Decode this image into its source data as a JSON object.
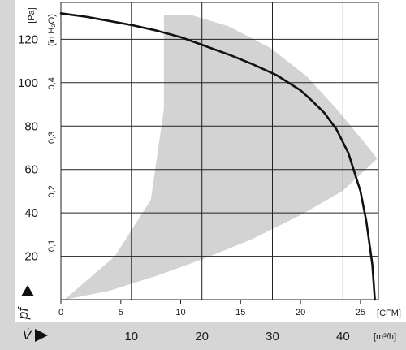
{
  "chart_data": {
    "type": "line",
    "title": "",
    "y_axis": {
      "unit": "[Pa]",
      "ticks": [
        20,
        40,
        60,
        80,
        100,
        120
      ],
      "range": [
        0,
        137
      ],
      "symbol": "pf"
    },
    "y_axis_secondary": {
      "unit": "(in H₂O)",
      "ticks": [
        "0,1",
        "0,2",
        "0,3",
        "0,4"
      ],
      "tick_values": [
        0.1,
        0.2,
        0.3,
        0.4
      ],
      "range": [
        0,
        0.55
      ]
    },
    "x_axis": {
      "unit": "[CFM]",
      "ticks": [
        "0",
        "5",
        "10",
        "15",
        "20",
        "25"
      ],
      "tick_values": [
        0,
        5,
        10,
        15,
        20,
        25
      ],
      "range": [
        0,
        26.5
      ]
    },
    "x_axis_secondary": {
      "unit": "[m³/h]",
      "ticks": [
        "10",
        "20",
        "30",
        "40"
      ],
      "tick_values": [
        10,
        20,
        30,
        40
      ],
      "symbol": "V̇"
    },
    "grid": true,
    "series": [
      {
        "x_unit": "CFM",
        "y_unit": "Pa",
        "x": [
          0,
          2,
          4,
          6,
          8,
          10,
          12,
          14,
          16,
          18,
          20,
          21,
          22,
          23,
          24,
          25,
          25.5,
          26.0,
          26.2
        ],
        "y": [
          132,
          130.5,
          128.5,
          126.5,
          124,
          121,
          117,
          113,
          108.5,
          103.5,
          96.5,
          91.5,
          86,
          78.5,
          67.5,
          50,
          36,
          16,
          0
        ]
      }
    ],
    "shaded_region": {
      "color": "#d3d3d3",
      "x": [
        0.3,
        4.5,
        7.5,
        8.6,
        8.6,
        11,
        14,
        17.5,
        20.5,
        23,
        24.5,
        25.7,
        26.4,
        23.5,
        20,
        16,
        12,
        8,
        4,
        0.3
      ],
      "y": [
        0,
        20,
        46,
        88,
        131,
        131,
        126,
        116,
        103,
        88,
        78,
        70,
        65,
        50,
        39,
        28,
        19,
        11,
        4,
        0
      ]
    },
    "colors": {
      "curve": "#111111",
      "shade": "#d3d3d3",
      "grid": "#222222",
      "band": "#d6d6d6"
    }
  }
}
